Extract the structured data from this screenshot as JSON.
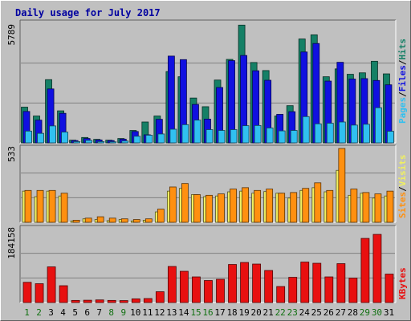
{
  "title": "Daily usage for July 2017",
  "colors": {
    "hits": "#158066",
    "files": "#1010e0",
    "pages": "#30c0f0",
    "visits": "#f0f060",
    "sites": "#ff9010",
    "kbytes": "#e81010",
    "title": "#0000a0",
    "weekend_label": "#107010"
  },
  "chart_data": [
    {
      "type": "bar",
      "title": "Daily usage for July 2017",
      "ylabel_max": "5789",
      "ylim": [
        0,
        5789
      ],
      "categories": [
        "1",
        "2",
        "3",
        "4",
        "5",
        "6",
        "7",
        "8",
        "9",
        "10",
        "11",
        "12",
        "13",
        "14",
        "15",
        "16",
        "17",
        "18",
        "19",
        "20",
        "21",
        "22",
        "23",
        "24",
        "25",
        "26",
        "27",
        "28",
        "29",
        "30",
        "31"
      ],
      "series": [
        {
          "name": "Hits",
          "values": [
            1730,
            1300,
            3060,
            1550,
            130,
            260,
            170,
            130,
            210,
            600,
            1010,
            1300,
            3450,
            3200,
            2170,
            1750,
            3040,
            4040,
            5700,
            3890,
            3500,
            1300,
            1800,
            5030,
            5230,
            3200,
            3580,
            3320,
            3390,
            3950,
            3340
          ]
        },
        {
          "name": "Files",
          "values": [
            1520,
            1100,
            2610,
            1430,
            110,
            210,
            140,
            110,
            180,
            550,
            390,
            1140,
            4200,
            4030,
            1860,
            1150,
            2680,
            3980,
            4230,
            3490,
            3030,
            1380,
            1510,
            4400,
            4810,
            2990,
            3900,
            3090,
            3110,
            3020,
            2810
          ]
        },
        {
          "name": "Pages",
          "values": [
            570,
            460,
            820,
            520,
            60,
            120,
            60,
            50,
            90,
            320,
            370,
            430,
            660,
            880,
            1100,
            640,
            600,
            640,
            830,
            840,
            720,
            580,
            600,
            1270,
            920,
            950,
            1010,
            860,
            900,
            1700,
            560
          ]
        }
      ],
      "legend": [
        "Pages",
        "Files",
        "Hits"
      ]
    },
    {
      "type": "bar",
      "ylabel_max": "533",
      "ylim": [
        0,
        533
      ],
      "categories": [
        "1",
        "2",
        "3",
        "4",
        "5",
        "6",
        "7",
        "8",
        "9",
        "10",
        "11",
        "12",
        "13",
        "14",
        "15",
        "16",
        "17",
        "18",
        "19",
        "20",
        "21",
        "22",
        "23",
        "24",
        "25",
        "26",
        "27",
        "28",
        "29",
        "30",
        "31"
      ],
      "series": [
        {
          "name": "Visits",
          "values": [
            225,
            185,
            225,
            190,
            10,
            25,
            20,
            12,
            20,
            10,
            15,
            75,
            225,
            245,
            200,
            185,
            190,
            220,
            225,
            210,
            222,
            210,
            175,
            230,
            250,
            220,
            375,
            195,
            210,
            175,
            190
          ]
        },
        {
          "name": "Sites",
          "values": [
            230,
            230,
            230,
            210,
            15,
            30,
            40,
            30,
            25,
            20,
            25,
            95,
            255,
            280,
            200,
            195,
            205,
            240,
            250,
            230,
            240,
            210,
            215,
            245,
            285,
            230,
            533,
            240,
            215,
            205,
            225
          ]
        }
      ],
      "legend": [
        "Sites",
        "Visits"
      ]
    },
    {
      "type": "bar",
      "ylabel_max": "184158",
      "ylim": [
        0,
        184158
      ],
      "categories": [
        "1",
        "2",
        "3",
        "4",
        "5",
        "6",
        "7",
        "8",
        "9",
        "10",
        "11",
        "12",
        "13",
        "14",
        "15",
        "16",
        "17",
        "18",
        "19",
        "20",
        "21",
        "22",
        "23",
        "24",
        "25",
        "26",
        "27",
        "28",
        "29",
        "30",
        "31"
      ],
      "series": [
        {
          "name": "KBytes",
          "values": [
            50500,
            47000,
            89000,
            42000,
            5300,
            5800,
            6600,
            5300,
            4900,
            9300,
            10000,
            27000,
            90000,
            78000,
            64000,
            55000,
            58000,
            95000,
            100000,
            96000,
            80000,
            40000,
            63000,
            101000,
            98000,
            64000,
            97000,
            61000,
            160000,
            170000,
            71000
          ]
        }
      ],
      "legend": [
        "KBytes"
      ]
    }
  ],
  "side_labels": {
    "top": [
      {
        "text": "Pages",
        "key": "pages"
      },
      {
        "text": "/",
        "key": "sep"
      },
      {
        "text": "Files",
        "key": "files"
      },
      {
        "text": "/",
        "key": "sep"
      },
      {
        "text": "Hits",
        "key": "hits"
      }
    ],
    "middle": [
      {
        "text": "Sites",
        "key": "sites"
      },
      {
        "text": "/",
        "key": "sep"
      },
      {
        "text": "Visits",
        "key": "visits"
      }
    ],
    "bottom": [
      {
        "text": "KBytes",
        "key": "kbytes"
      }
    ]
  },
  "weekend_days": [
    "1",
    "2",
    "8",
    "9",
    "15",
    "16",
    "22",
    "23",
    "29",
    "30"
  ]
}
